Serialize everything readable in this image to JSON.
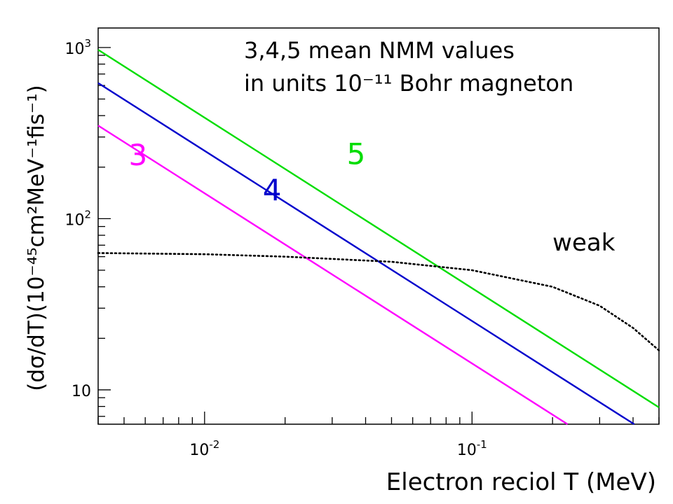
{
  "chart_data": {
    "type": "line",
    "title_lines": [
      "3,4,5 mean NMM values",
      "in units 10⁻¹¹ Bohr magneton"
    ],
    "xlabel": "Electron reciol T (MeV)",
    "ylabel": "(dσ/dT)(10⁻⁴⁵cm²MeV⁻¹fis⁻¹)",
    "x_scale": "log",
    "y_scale": "log",
    "xlim": [
      0.004,
      0.5
    ],
    "ylim": [
      6.3,
      1300
    ],
    "grid": false,
    "x_tick_labels": [
      {
        "value": 0.01,
        "base": "10",
        "exp": "-2"
      },
      {
        "value": 0.1,
        "base": "10",
        "exp": "-1"
      }
    ],
    "y_tick_labels": [
      {
        "value": 10,
        "base": "10",
        "exp": ""
      },
      {
        "value": 100,
        "base": "10",
        "exp": "2"
      },
      {
        "value": 1000,
        "base": "10",
        "exp": "3"
      }
    ],
    "series": [
      {
        "name": "3",
        "color": "#ff00ff",
        "style": "solid",
        "x": [
          0.004,
          0.2275
        ],
        "y": [
          350,
          6.3
        ],
        "label_at": [
          0.0052,
          205
        ]
      },
      {
        "name": "4",
        "color": "#0000cc",
        "style": "solid",
        "x": [
          0.004,
          0.404
        ],
        "y": [
          620,
          6.3
        ],
        "label_at": [
          0.0165,
          128
        ]
      },
      {
        "name": "5",
        "color": "#00dd00",
        "style": "solid",
        "x": [
          0.004,
          0.5
        ],
        "y": [
          970,
          7.9
        ],
        "label_at": [
          0.034,
          208
        ]
      },
      {
        "name": "weak",
        "color": "#000000",
        "style": "dotted",
        "x": [
          0.004,
          0.01,
          0.02,
          0.05,
          0.1,
          0.2,
          0.3,
          0.4,
          0.5
        ],
        "y": [
          63,
          62,
          60,
          56,
          50,
          40,
          31,
          23,
          17
        ],
        "label_at": [
          0.2,
          65
        ]
      }
    ]
  }
}
